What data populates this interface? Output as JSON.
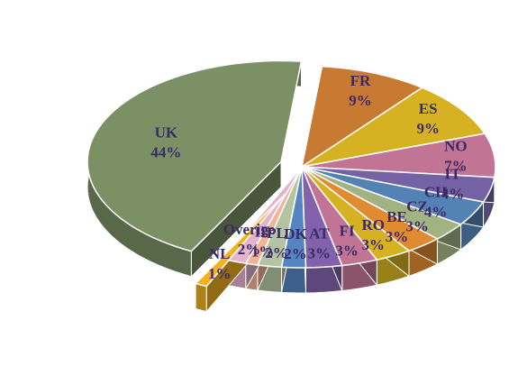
{
  "chart_data": {
    "type": "pie3d",
    "categories": [
      "FR",
      "ES",
      "NO",
      "IT",
      "CH",
      "CZ",
      "BE",
      "RO",
      "FI",
      "AT",
      "DK",
      "PL",
      "IE",
      "Overige",
      "NL",
      "UK"
    ],
    "values": [
      9,
      9,
      7,
      4,
      4,
      3,
      3,
      3,
      3,
      3,
      2,
      2,
      1,
      2,
      1,
      44
    ],
    "value_labels": [
      "9%",
      "9%",
      "7%",
      "4%",
      "4%",
      "3%",
      "3%",
      "3%",
      "3%",
      "3%",
      "2%",
      "2%",
      "1%",
      "2%",
      "1%",
      "44%"
    ],
    "colors": [
      "#c87a32",
      "#d6b222",
      "#c27494",
      "#7462a4",
      "#5482b4",
      "#a2b283",
      "#e08a32",
      "#d6b222",
      "#c27494",
      "#8262aa",
      "#5484c2",
      "#b4c4a2",
      "#f2b494",
      "#e4b4cc",
      "#f2b222",
      "#7b9064"
    ],
    "exploded": [
      "NL",
      "UK"
    ]
  }
}
